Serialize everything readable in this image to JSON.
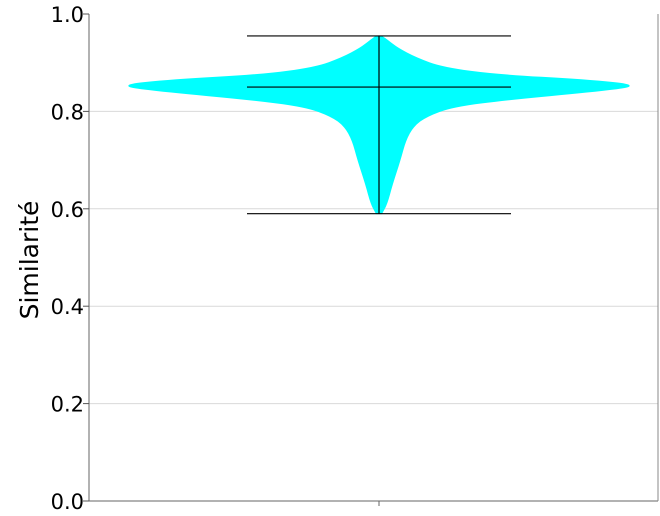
{
  "chart_data": {
    "type": "violin",
    "title": "",
    "xlabel": "",
    "ylabel": "Similarité",
    "ylim": [
      0,
      1.0
    ],
    "yticks": [
      0.0,
      0.2,
      0.4,
      0.6,
      0.8,
      1.0
    ],
    "ytick_labels": [
      "0.0",
      "0.2",
      "0.4",
      "0.6",
      "0.8",
      "1.0"
    ],
    "grid": "horizontal",
    "series": [
      {
        "fill_color": "#00ffff",
        "min": 0.59,
        "median": 0.85,
        "max": 0.955,
        "density_profile": [
          {
            "y": 0.59,
            "w": 0.01
          },
          {
            "y": 0.61,
            "w": 0.03
          },
          {
            "y": 0.65,
            "w": 0.05
          },
          {
            "y": 0.7,
            "w": 0.08
          },
          {
            "y": 0.74,
            "w": 0.1
          },
          {
            "y": 0.77,
            "w": 0.13
          },
          {
            "y": 0.79,
            "w": 0.18
          },
          {
            "y": 0.81,
            "w": 0.28
          },
          {
            "y": 0.825,
            "w": 0.5
          },
          {
            "y": 0.84,
            "w": 0.8
          },
          {
            "y": 0.853,
            "w": 1.0
          },
          {
            "y": 0.865,
            "w": 0.78
          },
          {
            "y": 0.875,
            "w": 0.45
          },
          {
            "y": 0.89,
            "w": 0.24
          },
          {
            "y": 0.91,
            "w": 0.14
          },
          {
            "y": 0.93,
            "w": 0.07
          },
          {
            "y": 0.945,
            "w": 0.035
          },
          {
            "y": 0.955,
            "w": 0.01
          }
        ]
      }
    ]
  }
}
